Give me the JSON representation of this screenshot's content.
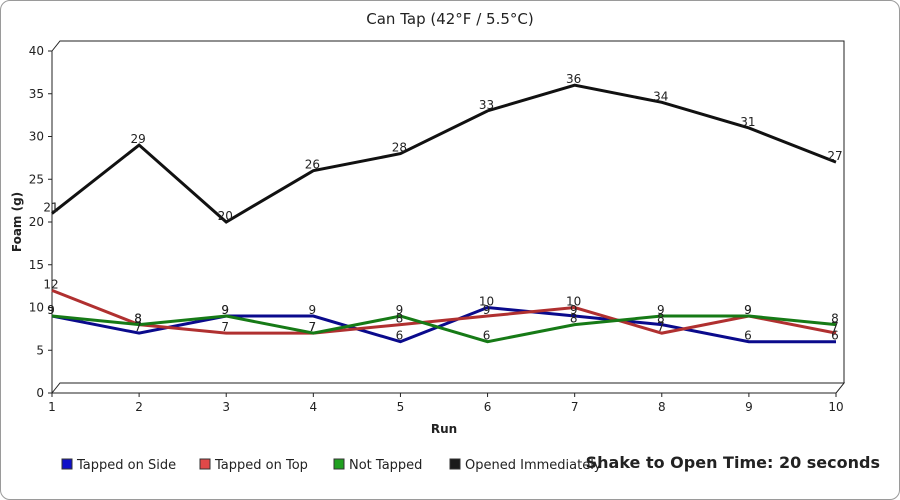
{
  "chart_data": {
    "type": "line",
    "title": "Can Tap (42°F / 5.5°C)",
    "xlabel": "Run",
    "ylabel": "Foam (g)",
    "x": [
      1,
      2,
      3,
      4,
      5,
      6,
      7,
      8,
      9,
      10
    ],
    "ylim": [
      0,
      40
    ],
    "yticks": [
      0,
      5,
      10,
      15,
      20,
      25,
      30,
      35,
      40
    ],
    "grid": false,
    "legend_position": "bottom",
    "annotation": "Shake to Open Time: 20 seconds",
    "series": [
      {
        "name": "Tapped on Side",
        "color": "#0a0a8c",
        "width": 3,
        "values": [
          9,
          7,
          9,
          9,
          6,
          10,
          9,
          8,
          6,
          6
        ]
      },
      {
        "name": "Tapped on Top",
        "color": "#b03030",
        "width": 3,
        "values": [
          12,
          8,
          7,
          7,
          8,
          9,
          10,
          7,
          9,
          7
        ]
      },
      {
        "name": "Not Tapped",
        "color": "#167a16",
        "width": 3,
        "values": [
          9,
          8,
          9,
          7,
          9,
          6,
          8,
          9,
          9,
          8
        ]
      },
      {
        "name": "Opened Immediately",
        "color": "#111111",
        "width": 3,
        "values": [
          21,
          29,
          20,
          26,
          28,
          33,
          36,
          34,
          31,
          27
        ]
      }
    ]
  },
  "legend_colors": {
    "Tapped on Side": "#1010c8",
    "Tapped on Top": "#e04848",
    "Not Tapped": "#20a020",
    "Opened Immediately": "#1a1a1a"
  }
}
